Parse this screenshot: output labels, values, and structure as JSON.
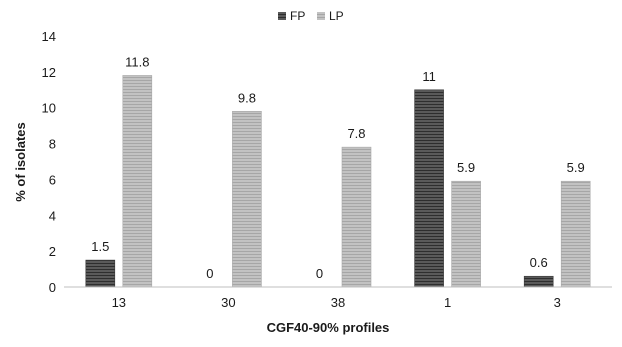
{
  "chart_data": {
    "type": "bar",
    "title": "",
    "xlabel": "CGF40-90% profiles",
    "ylabel": "% of isolates",
    "categories": [
      "13",
      "30",
      "38",
      "1",
      "3"
    ],
    "series": [
      {
        "name": "FP",
        "values": [
          1.5,
          0,
          0,
          11,
          0.6
        ],
        "labels": [
          "1.5",
          "0",
          "0",
          "11",
          "0.6"
        ],
        "color": "#555555",
        "stripe": "#2e2e2e"
      },
      {
        "name": "LP",
        "values": [
          11.8,
          9.8,
          7.8,
          5.9,
          5.9
        ],
        "labels": [
          "11.8",
          "9.8",
          "7.8",
          "5.9",
          "5.9"
        ],
        "color": "#bdbdbd",
        "stripe": "#9e9e9e"
      }
    ],
    "ylim": [
      0,
      14
    ],
    "yticks": [
      "0",
      "2",
      "4",
      "6",
      "8",
      "10",
      "12",
      "14"
    ],
    "grid": false,
    "legend": "top-center"
  }
}
